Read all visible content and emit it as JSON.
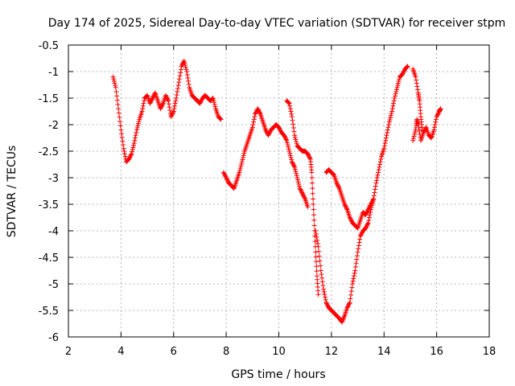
{
  "chart_data": {
    "type": "scatter",
    "title": "Day 174 of 2025, Sidereal Day-to-day VTEC variation (SDTVAR) for receiver stpm",
    "xlabel": "GPS time / hours",
    "ylabel": "SDTVAR / TECUs",
    "xlim": [
      2,
      18
    ],
    "ylim": [
      -6,
      -0.5
    ],
    "xticks": [
      "2",
      "4",
      "6",
      "8",
      "10",
      "12",
      "14",
      "16",
      "18"
    ],
    "yticks": [
      "-0.5",
      "-1",
      "-1.5",
      "-2",
      "-2.5",
      "-3",
      "-3.5",
      "-4",
      "-4.5",
      "-5",
      "-5.5",
      "-6"
    ],
    "grid": true,
    "marker": "plus",
    "color": "#ff0000",
    "series": [
      {
        "name": "SDTVAR",
        "segments": [
          [
            [
              3.7,
              -1.1
            ],
            [
              3.8,
              -1.3
            ],
            [
              3.9,
              -1.7
            ],
            [
              4.0,
              -2.1
            ],
            [
              4.1,
              -2.45
            ],
            [
              4.2,
              -2.7
            ],
            [
              4.3,
              -2.65
            ],
            [
              4.4,
              -2.55
            ],
            [
              4.5,
              -2.35
            ],
            [
              4.6,
              -2.1
            ],
            [
              4.7,
              -1.9
            ],
            [
              4.8,
              -1.75
            ],
            [
              4.9,
              -1.5
            ],
            [
              5.0,
              -1.45
            ],
            [
              5.1,
              -1.6
            ],
            [
              5.2,
              -1.5
            ],
            [
              5.3,
              -1.4
            ],
            [
              5.4,
              -1.55
            ],
            [
              5.5,
              -1.7
            ],
            [
              5.6,
              -1.6
            ],
            [
              5.7,
              -1.45
            ],
            [
              5.8,
              -1.55
            ],
            [
              5.9,
              -1.85
            ],
            [
              6.0,
              -1.75
            ],
            [
              6.1,
              -1.5
            ],
            [
              6.2,
              -1.2
            ],
            [
              6.3,
              -0.9
            ],
            [
              6.4,
              -0.8
            ],
            [
              6.5,
              -1.0
            ],
            [
              6.6,
              -1.3
            ],
            [
              6.7,
              -1.45
            ],
            [
              6.8,
              -1.5
            ],
            [
              6.9,
              -1.55
            ],
            [
              7.0,
              -1.6
            ],
            [
              7.1,
              -1.5
            ],
            [
              7.2,
              -1.45
            ],
            [
              7.3,
              -1.5
            ],
            [
              7.4,
              -1.55
            ],
            [
              7.5,
              -1.5
            ],
            [
              7.6,
              -1.7
            ],
            [
              7.7,
              -1.85
            ],
            [
              7.8,
              -1.9
            ]
          ],
          [
            [
              7.9,
              -2.9
            ],
            [
              8.0,
              -3.0
            ],
            [
              8.1,
              -3.1
            ],
            [
              8.2,
              -3.15
            ],
            [
              8.3,
              -3.2
            ],
            [
              8.4,
              -3.05
            ],
            [
              8.5,
              -2.9
            ],
            [
              8.6,
              -2.7
            ],
            [
              8.7,
              -2.5
            ],
            [
              8.8,
              -2.35
            ],
            [
              8.9,
              -2.2
            ],
            [
              9.0,
              -2.05
            ],
            [
              9.1,
              -1.8
            ],
            [
              9.2,
              -1.7
            ],
            [
              9.3,
              -1.8
            ],
            [
              9.4,
              -1.95
            ],
            [
              9.5,
              -2.1
            ],
            [
              9.6,
              -2.2
            ],
            [
              9.7,
              -2.1
            ],
            [
              9.8,
              -2.05
            ],
            [
              9.9,
              -2.0
            ],
            [
              10.0,
              -2.05
            ],
            [
              10.1,
              -2.15
            ],
            [
              10.2,
              -2.2
            ],
            [
              10.3,
              -2.3
            ],
            [
              10.4,
              -2.5
            ],
            [
              10.5,
              -2.7
            ],
            [
              10.6,
              -2.8
            ],
            [
              10.7,
              -3.0
            ],
            [
              10.8,
              -3.2
            ],
            [
              10.9,
              -3.3
            ],
            [
              11.0,
              -3.4
            ],
            [
              11.1,
              -3.55
            ]
          ],
          [
            [
              10.3,
              -1.55
            ],
            [
              10.4,
              -1.6
            ],
            [
              10.5,
              -1.85
            ],
            [
              10.6,
              -2.2
            ],
            [
              10.7,
              -2.4
            ],
            [
              10.8,
              -2.45
            ],
            [
              10.9,
              -2.5
            ],
            [
              11.0,
              -2.5
            ],
            [
              11.1,
              -2.55
            ],
            [
              11.2,
              -2.65
            ],
            [
              11.25,
              -2.9
            ],
            [
              11.3,
              -3.4
            ],
            [
              11.35,
              -3.9
            ],
            [
              11.4,
              -4.4
            ],
            [
              11.45,
              -4.85
            ],
            [
              11.5,
              -5.2
            ]
          ],
          [
            [
              11.4,
              -4.0
            ],
            [
              11.5,
              -4.3
            ],
            [
              11.6,
              -4.75
            ],
            [
              11.7,
              -5.1
            ],
            [
              11.8,
              -5.35
            ],
            [
              11.9,
              -5.45
            ],
            [
              12.0,
              -5.5
            ],
            [
              12.1,
              -5.55
            ],
            [
              12.2,
              -5.6
            ],
            [
              12.3,
              -5.65
            ],
            [
              12.4,
              -5.72
            ],
            [
              12.5,
              -5.6
            ],
            [
              12.6,
              -5.45
            ],
            [
              12.7,
              -5.35
            ],
            [
              12.8,
              -5.0
            ],
            [
              12.9,
              -4.75
            ],
            [
              13.0,
              -4.4
            ],
            [
              13.1,
              -4.1
            ],
            [
              13.2,
              -4.0
            ],
            [
              13.3,
              -3.95
            ],
            [
              13.4,
              -3.85
            ],
            [
              13.5,
              -3.6
            ],
            [
              13.6,
              -3.4
            ],
            [
              13.7,
              -3.1
            ],
            [
              13.8,
              -2.85
            ],
            [
              13.9,
              -2.6
            ],
            [
              14.0,
              -2.45
            ],
            [
              14.1,
              -2.2
            ],
            [
              14.2,
              -1.95
            ],
            [
              14.3,
              -1.75
            ],
            [
              14.4,
              -1.5
            ],
            [
              14.5,
              -1.3
            ],
            [
              14.6,
              -1.1
            ],
            [
              14.7,
              -1.05
            ],
            [
              14.8,
              -0.95
            ],
            [
              14.9,
              -0.9
            ]
          ],
          [
            [
              11.8,
              -2.9
            ],
            [
              11.9,
              -2.85
            ],
            [
              12.0,
              -2.9
            ],
            [
              12.1,
              -2.95
            ],
            [
              12.2,
              -3.1
            ],
            [
              12.3,
              -3.2
            ],
            [
              12.4,
              -3.35
            ],
            [
              12.5,
              -3.5
            ],
            [
              12.6,
              -3.6
            ],
            [
              12.7,
              -3.75
            ],
            [
              12.8,
              -3.85
            ],
            [
              12.9,
              -3.9
            ],
            [
              13.0,
              -3.95
            ],
            [
              13.1,
              -3.8
            ],
            [
              13.2,
              -3.65
            ],
            [
              13.3,
              -3.7
            ],
            [
              13.4,
              -3.6
            ],
            [
              13.5,
              -3.5
            ],
            [
              13.6,
              -3.4
            ]
          ],
          [
            [
              15.1,
              -0.95
            ],
            [
              15.2,
              -1.1
            ],
            [
              15.3,
              -1.4
            ],
            [
              15.35,
              -1.55
            ],
            [
              15.4,
              -1.85
            ],
            [
              15.45,
              -2.1
            ]
          ],
          [
            [
              15.1,
              -2.3
            ],
            [
              15.2,
              -2.1
            ],
            [
              15.25,
              -1.9
            ],
            [
              15.3,
              -2.0
            ],
            [
              15.4,
              -2.3
            ],
            [
              15.5,
              -2.15
            ],
            [
              15.6,
              -2.05
            ],
            [
              15.7,
              -2.2
            ],
            [
              15.8,
              -2.25
            ],
            [
              15.9,
              -2.1
            ],
            [
              16.0,
              -1.85
            ],
            [
              16.1,
              -1.75
            ],
            [
              16.15,
              -1.7
            ]
          ]
        ]
      }
    ]
  }
}
